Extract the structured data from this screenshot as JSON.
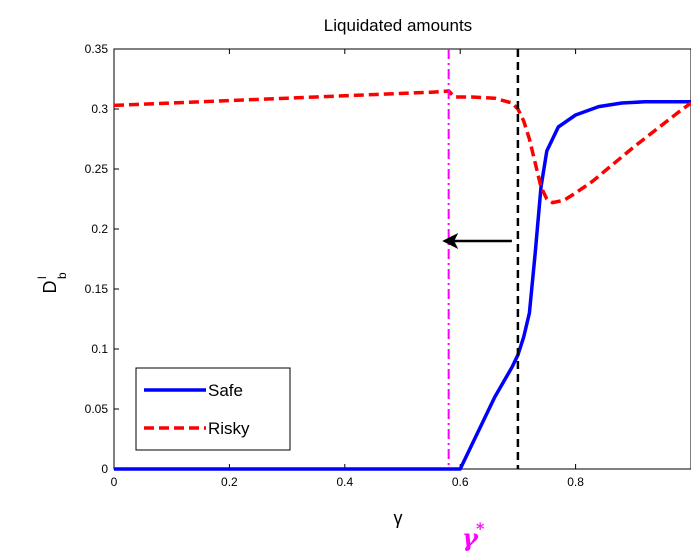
{
  "chart_data": {
    "type": "line",
    "title": "Liquidated amounts",
    "xlabel": "γ",
    "ylabel_main": "D",
    "ylabel_sup": "l",
    "ylabel_sub": "b",
    "xlim": [
      0,
      1
    ],
    "ylim": [
      0,
      0.35
    ],
    "xticks": [
      0,
      0.2,
      0.4,
      0.6,
      0.8
    ],
    "xtick_labels": [
      "0",
      "0.2",
      "0.4",
      "0.6",
      "0.8"
    ],
    "yticks": [
      0,
      0.05,
      0.1,
      0.15,
      0.2,
      0.25,
      0.3,
      0.35
    ],
    "ytick_labels": [
      "0",
      "0.05",
      "0.1",
      "0.15",
      "0.2",
      "0.25",
      "0.3",
      "0.35"
    ],
    "grid": false,
    "legend_position": "bottom-left",
    "series": [
      {
        "name": "Safe",
        "color": "#0000ff",
        "style": "solid",
        "x": [
          0,
          0.58,
          0.6,
          0.63,
          0.66,
          0.69,
          0.7,
          0.71,
          0.72,
          0.73,
          0.74,
          0.75,
          0.77,
          0.8,
          0.84,
          0.88,
          0.92,
          0.96,
          1.0
        ],
        "y": [
          0,
          0,
          0,
          0.03,
          0.06,
          0.085,
          0.095,
          0.11,
          0.13,
          0.18,
          0.235,
          0.265,
          0.285,
          0.295,
          0.302,
          0.305,
          0.306,
          0.306,
          0.306
        ]
      },
      {
        "name": "Risky",
        "color": "#ff0000",
        "style": "dashed",
        "x": [
          0,
          0.1,
          0.2,
          0.3,
          0.4,
          0.5,
          0.55,
          0.58,
          0.59,
          0.62,
          0.66,
          0.69,
          0.7,
          0.71,
          0.72,
          0.73,
          0.74,
          0.75,
          0.76,
          0.78,
          0.8,
          0.83,
          0.86,
          0.9,
          0.94,
          0.98,
          1.0
        ],
        "y": [
          0.303,
          0.305,
          0.307,
          0.309,
          0.311,
          0.313,
          0.314,
          0.315,
          0.31,
          0.31,
          0.309,
          0.305,
          0.3,
          0.29,
          0.275,
          0.255,
          0.235,
          0.225,
          0.222,
          0.224,
          0.23,
          0.24,
          0.252,
          0.268,
          0.283,
          0.298,
          0.305
        ]
      }
    ],
    "annotations": {
      "gamma_star_x": 0.58,
      "gamma_star_color": "#ff00ff",
      "threshold_x": 0.7,
      "threshold_color": "#000000",
      "arrow_y": 0.19,
      "arrow_from_x": 0.7,
      "arrow_to_x": 0.6,
      "gamma_star_label": "γ",
      "gamma_star_sup": "*"
    }
  }
}
